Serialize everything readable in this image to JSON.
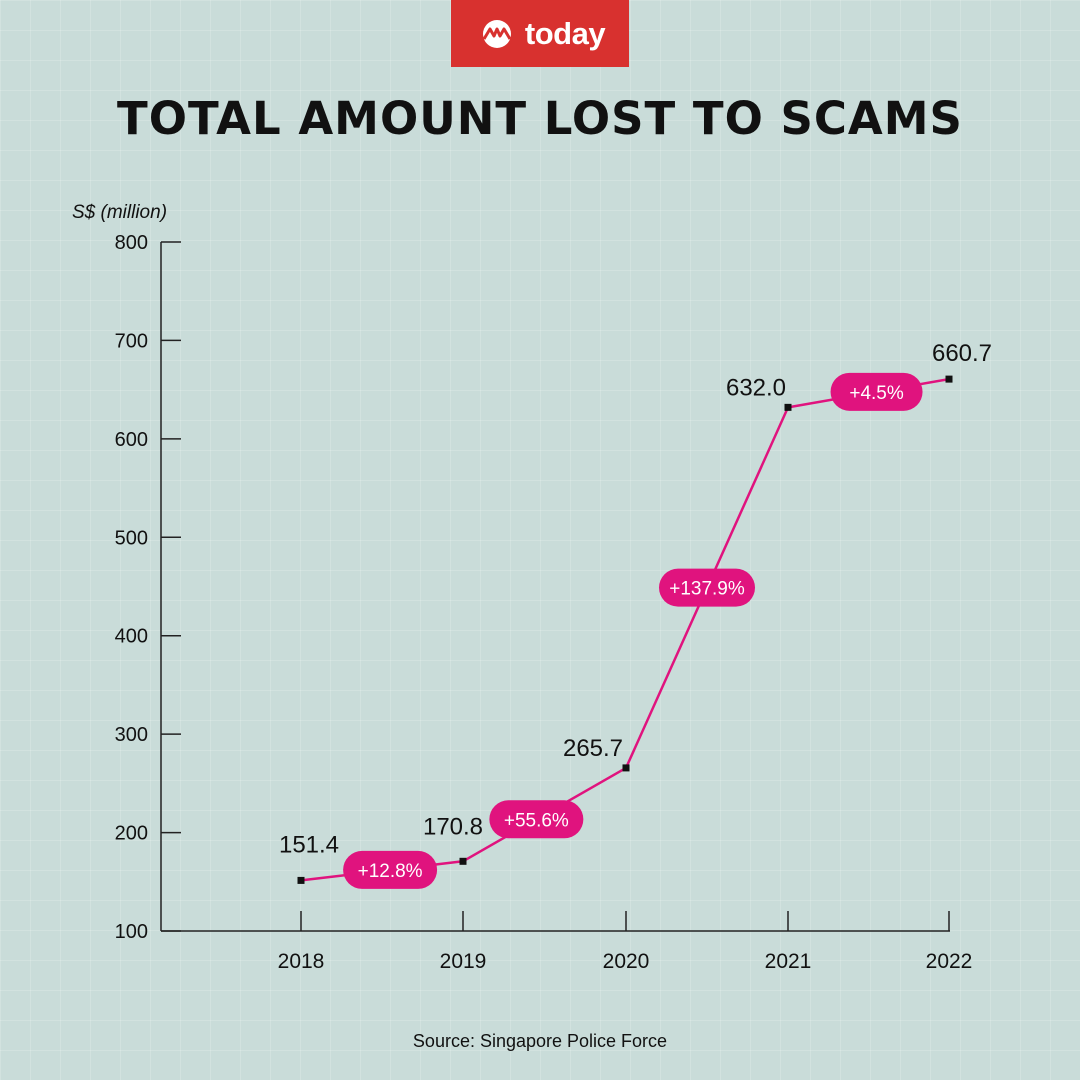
{
  "brand": {
    "name": "today",
    "color": "#d8312f"
  },
  "title": "TOTAL AMOUNT LOST TO SCAMS",
  "source": "Source: Singapore Police Force",
  "chart_data": {
    "type": "line",
    "x": [
      "2018",
      "2019",
      "2020",
      "2021",
      "2022"
    ],
    "series": [
      {
        "values": [
          151.4,
          170.8,
          265.7,
          632.0,
          660.7
        ],
        "color": "#e0137e"
      }
    ],
    "value_labels": [
      "151.4",
      "170.8",
      "265.7",
      "632.0",
      "660.7"
    ],
    "change_labels": [
      "+12.8%",
      "+55.6%",
      "+137.9%",
      "+4.5%"
    ],
    "ylabel": "S$ (million)",
    "ylim": [
      100,
      800
    ],
    "yticks": [
      800,
      700,
      600,
      500,
      400,
      300,
      200,
      100
    ],
    "grid": true
  }
}
